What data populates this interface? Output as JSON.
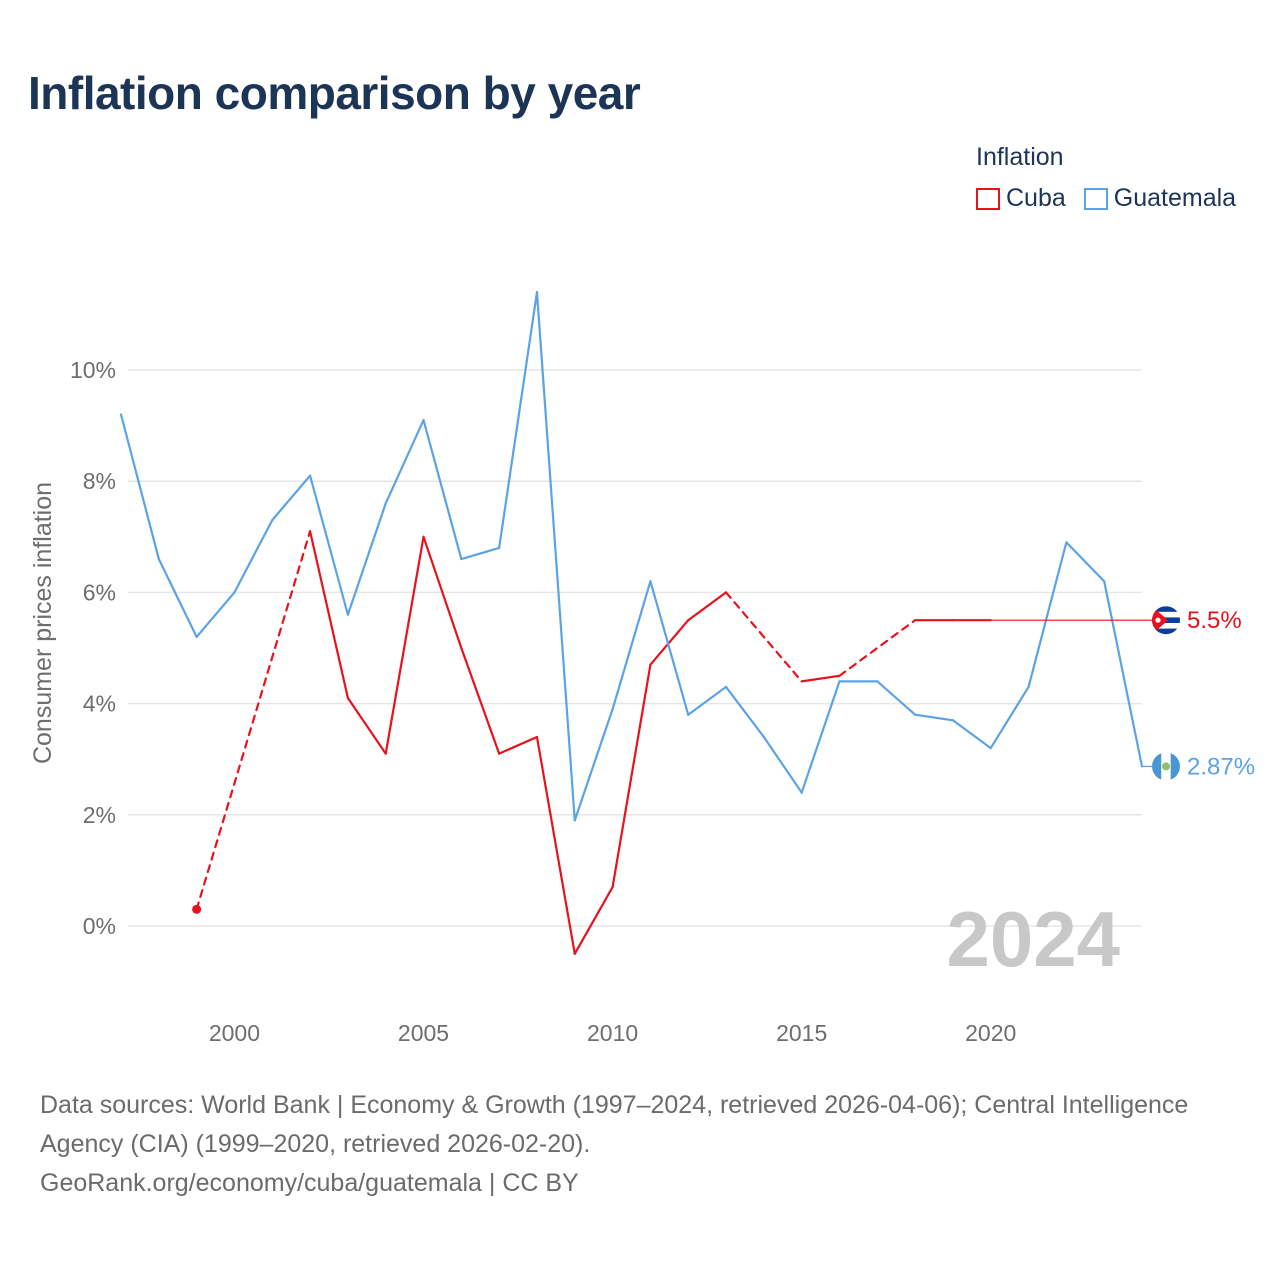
{
  "title": "Inflation comparison by year",
  "legend": {
    "title": "Inflation",
    "items": [
      {
        "name": "Cuba",
        "color": "#e8121c"
      },
      {
        "name": "Guatemala",
        "color": "#5ba3e6"
      }
    ]
  },
  "chart_data": {
    "type": "line",
    "ylabel": "Consumer prices inflation",
    "xlim": [
      1997,
      2024
    ],
    "ylim": [
      -1.5,
      12
    ],
    "x_ticks": [
      2000,
      2005,
      2010,
      2015,
      2020
    ],
    "y_ticks": [
      0,
      2,
      4,
      6,
      8,
      10
    ],
    "y_tick_labels": [
      "0%",
      "2%",
      "4%",
      "6%",
      "8%",
      "10%"
    ],
    "current_year_label": "2024",
    "series": [
      {
        "name": "Cuba",
        "color": "#e8121c",
        "end_label": "5.5%",
        "end_value": 5.5,
        "flag_icon": "cuba-flag-icon",
        "points": [
          {
            "x": 1999,
            "y": 0.3
          },
          {
            "x": 2002,
            "y": 7.1
          },
          {
            "x": 2003,
            "y": 4.1
          },
          {
            "x": 2004,
            "y": 3.1
          },
          {
            "x": 2005,
            "y": 7.0
          },
          {
            "x": 2006,
            "y": 5.0
          },
          {
            "x": 2007,
            "y": 3.1
          },
          {
            "x": 2008,
            "y": 3.4
          },
          {
            "x": 2009,
            "y": -0.5
          },
          {
            "x": 2010,
            "y": 0.7
          },
          {
            "x": 2011,
            "y": 4.7
          },
          {
            "x": 2012,
            "y": 5.5
          },
          {
            "x": 2013,
            "y": 6.0
          },
          {
            "x": 2015,
            "y": 4.4
          },
          {
            "x": 2016,
            "y": 4.5
          },
          {
            "x": 2018,
            "y": 5.5
          },
          {
            "x": 2019,
            "y": 5.5
          },
          {
            "x": 2020,
            "y": 5.5
          }
        ]
      },
      {
        "name": "Guatemala",
        "color": "#5ba3e6",
        "end_label": "2.87%",
        "end_value": 2.87,
        "flag_icon": "guatemala-flag-icon",
        "points": [
          {
            "x": 1997,
            "y": 9.2
          },
          {
            "x": 1998,
            "y": 6.6
          },
          {
            "x": 1999,
            "y": 5.2
          },
          {
            "x": 2000,
            "y": 6.0
          },
          {
            "x": 2001,
            "y": 7.3
          },
          {
            "x": 2002,
            "y": 8.1
          },
          {
            "x": 2003,
            "y": 5.6
          },
          {
            "x": 2004,
            "y": 7.6
          },
          {
            "x": 2005,
            "y": 9.1
          },
          {
            "x": 2006,
            "y": 6.6
          },
          {
            "x": 2007,
            "y": 6.8
          },
          {
            "x": 2008,
            "y": 11.4
          },
          {
            "x": 2009,
            "y": 1.9
          },
          {
            "x": 2010,
            "y": 3.9
          },
          {
            "x": 2011,
            "y": 6.2
          },
          {
            "x": 2012,
            "y": 3.8
          },
          {
            "x": 2013,
            "y": 4.3
          },
          {
            "x": 2014,
            "y": 3.4
          },
          {
            "x": 2015,
            "y": 2.4
          },
          {
            "x": 2016,
            "y": 4.4
          },
          {
            "x": 2017,
            "y": 4.4
          },
          {
            "x": 2018,
            "y": 3.8
          },
          {
            "x": 2019,
            "y": 3.7
          },
          {
            "x": 2020,
            "y": 3.2
          },
          {
            "x": 2021,
            "y": 4.3
          },
          {
            "x": 2022,
            "y": 6.9
          },
          {
            "x": 2023,
            "y": 6.2
          },
          {
            "x": 2024,
            "y": 2.87
          }
        ]
      }
    ]
  },
  "sources": {
    "line1": "Data sources: World Bank | Economy & Growth (1997–2024, retrieved 2026-04-06); Central Intelligence Agency (CIA) (1999–2020, retrieved 2026-02-20).",
    "line2": "GeoRank.org/economy/cuba/guatemala | CC BY"
  }
}
